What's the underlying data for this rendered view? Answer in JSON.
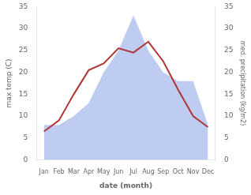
{
  "chart_data": {
    "type": "line",
    "xlabel": "date (month)",
    "ylabel": "max temp (C)",
    "y2label": "med. precipitation (kg/m2)",
    "categories": [
      "Jan",
      "Feb",
      "Mar",
      "Apr",
      "May",
      "Jun",
      "Jul",
      "Aug",
      "Sep",
      "Oct",
      "Nov",
      "Dec"
    ],
    "series": [
      {
        "type": "area",
        "color": "#aabbee",
        "axis": "y2",
        "values": [
          8,
          8,
          10,
          13,
          20,
          25,
          33,
          25,
          20,
          18,
          18,
          8
        ]
      },
      {
        "type": "line",
        "color": "#b03535",
        "values": [
          6.5,
          9.0,
          15.0,
          20.5,
          22.0,
          25.5,
          24.5,
          27.0,
          22.5,
          16.0,
          10.0,
          7.5
        ]
      }
    ],
    "ylim": [
      0,
      35
    ],
    "yticks": [
      0,
      5,
      10,
      15,
      20,
      25,
      30,
      35
    ],
    "y2lim": [
      0,
      35
    ],
    "y2ticks": [
      0,
      5,
      10,
      15,
      20,
      25,
      30,
      35
    ],
    "grid": false
  }
}
